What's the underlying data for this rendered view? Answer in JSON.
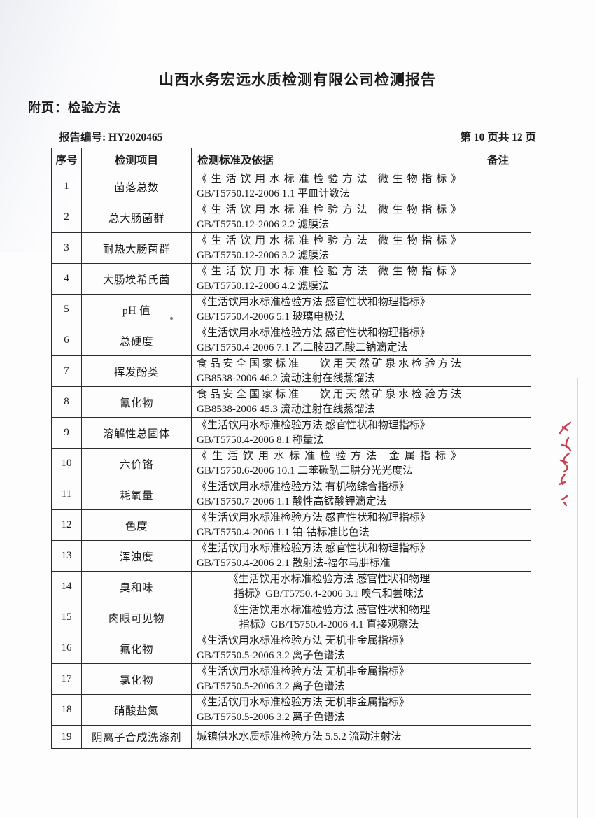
{
  "page": {
    "title": "山西水务宏远水质检测有限公司检测报告",
    "subtitle": "附页：检验方法",
    "report_no": "报告编号: HY2020465",
    "page_indicator": "第 10 页共 12 页"
  },
  "table": {
    "headers": {
      "no": "序号",
      "item": "检测项目",
      "standard": "检测标准及依据",
      "remark": "备注"
    },
    "rows": [
      {
        "no": "1",
        "item": "菌落总数",
        "lines": [
          "《生活饮用水标准检验方法  微生物指标》",
          "GB/T5750.12-2006   1.1 平皿计数法"
        ],
        "variant": "justify",
        "remark": ""
      },
      {
        "no": "2",
        "item": "总大肠菌群",
        "lines": [
          "《生活饮用水标准检验方法  微生物指标》",
          "GB/T5750.12-2006   2.2 滤膜法"
        ],
        "variant": "justify",
        "remark": ""
      },
      {
        "no": "3",
        "item": "耐热大肠菌群",
        "lines": [
          "《生活饮用水标准检验方法  微生物指标》",
          "GB/T5750.12-2006   3.2 滤膜法"
        ],
        "variant": "justify",
        "remark": ""
      },
      {
        "no": "4",
        "item": "大肠埃希氏菌",
        "lines": [
          "《生活饮用水标准检验方法  微生物指标》",
          "GB/T5750.12-2006   4.2 滤膜法"
        ],
        "variant": "justify",
        "remark": ""
      },
      {
        "no": "5",
        "item": "pH 值",
        "lines": [
          "《生活饮用水标准检验方法 感官性状和物理指标》",
          "GB/T5750.4-2006   5.1 玻璃电极法"
        ],
        "variant": "",
        "remark": ""
      },
      {
        "no": "6",
        "item": "总硬度",
        "lines": [
          "《生活饮用水标准检验方法 感官性状和物理指标》",
          "GB/T5750.4-2006   7.1 乙二胺四乙酸二钠滴定法"
        ],
        "variant": "",
        "remark": ""
      },
      {
        "no": "7",
        "item": "挥发酚类",
        "lines": [
          "食品安全国家标准　 饮用天然矿泉水检验方法",
          "GB8538-2006    46.2 流动注射在线蒸馏法"
        ],
        "variant": "justify",
        "remark": ""
      },
      {
        "no": "8",
        "item": "氰化物",
        "lines": [
          "食品安全国家标准　 饮用天然矿泉水检验方法",
          "GB8538-2006    45.3 流动注射在线蒸馏法"
        ],
        "variant": "justify",
        "remark": ""
      },
      {
        "no": "9",
        "item": "溶解性总固体",
        "lines": [
          "《生活饮用水标准检验方法 感官性状和物理指标》",
          "GB/T5750.4-2006   8.1 称量法"
        ],
        "variant": "",
        "remark": ""
      },
      {
        "no": "10",
        "item": "六价铬",
        "lines": [
          "《生活饮用水标准检验方法  金属指标》",
          "GB/T5750.6-2006   10.1 二苯碳酰二肼分光光度法"
        ],
        "variant": "justify",
        "remark": ""
      },
      {
        "no": "11",
        "item": "耗氧量",
        "lines": [
          "《生活饮用水标准检验方法 有机物综合指标》",
          "GB/T5750.7-2006   1.1 酸性高锰酸钾滴定法"
        ],
        "variant": "",
        "remark": ""
      },
      {
        "no": "12",
        "item": "色度",
        "lines": [
          "《生活饮用水标准检验方法 感官性状和物理指标》",
          "GB/T5750.4-2006   1.1 铂-钴标准比色法"
        ],
        "variant": "",
        "remark": ""
      },
      {
        "no": "13",
        "item": "浑浊度",
        "lines": [
          "《生活饮用水标准检验方法 感官性状和物理指标》",
          "GB/T5750.4-2006   2.1 散射法-福尔马肼标准"
        ],
        "variant": "",
        "remark": ""
      },
      {
        "no": "14",
        "item": "臭和味",
        "lines": [
          "《生活饮用水标准检验方法 感官性状和物理",
          "指标》GB/T5750.4-2006 3.1 嗅气和尝味法"
        ],
        "variant": "center",
        "remark": ""
      },
      {
        "no": "15",
        "item": "肉眼可见物",
        "lines": [
          "《生活饮用水标准检验方法 感官性状和物理",
          "指标》GB/T5750.4-2006 4.1 直接观察法"
        ],
        "variant": "center",
        "remark": ""
      },
      {
        "no": "16",
        "item": "氟化物",
        "lines": [
          "《生活饮用水标准检验方法 无机非金属指标》",
          "GB/T5750.5-2006   3.2 离子色谱法"
        ],
        "variant": "",
        "remark": ""
      },
      {
        "no": "17",
        "item": "氯化物",
        "lines": [
          "《生活饮用水标准检验方法 无机非金属指标》",
          "GB/T5750.5-2006   3.2 离子色谱法"
        ],
        "variant": "",
        "remark": ""
      },
      {
        "no": "18",
        "item": "硝酸盐氮",
        "lines": [
          "《生活饮用水标准检验方法 无机非金属指标》",
          "GB/T5750.5-2006   3.2 离子色谱法"
        ],
        "variant": "",
        "remark": ""
      },
      {
        "no": "19",
        "item": "阴离子合成洗涤剂",
        "lines": [
          "城镇供水水质标准检验方法 5.5.2   流动注射法"
        ],
        "variant": "single",
        "remark": ""
      }
    ]
  },
  "annotations": {
    "red_mark_color": "#c2263a"
  }
}
